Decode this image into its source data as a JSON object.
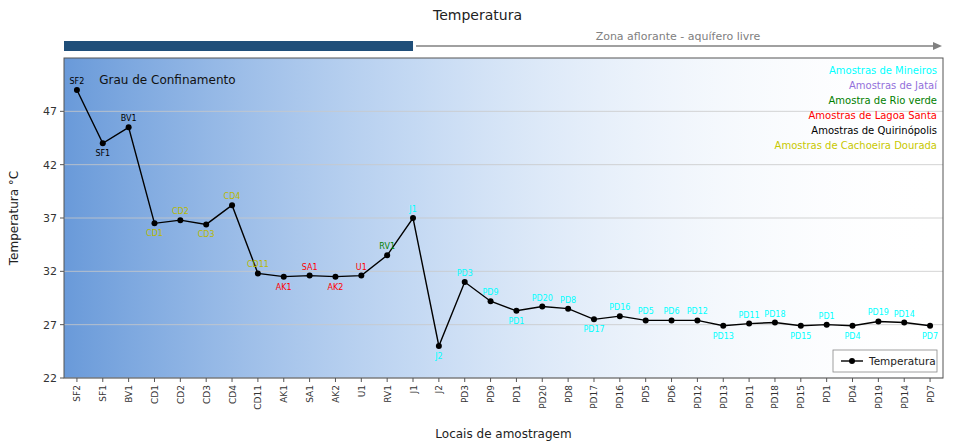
{
  "chart_data": {
    "type": "line",
    "title": "Temperatura",
    "x_label": "Locais de amostragem",
    "y_label": "Temperatura °C",
    "categories": [
      "SF2",
      "SF1",
      "BV1",
      "CD1",
      "CD2",
      "CD3",
      "CD4",
      "CD11",
      "AK1",
      "SA1",
      "AK2",
      "U1",
      "RV1",
      "J1",
      "J2",
      "PD3",
      "PD9",
      "PD1",
      "PD20",
      "PD8",
      "PD17",
      "PD16",
      "PD5",
      "PD6",
      "PD12",
      "PD13",
      "PD11",
      "PD18",
      "PD15",
      "PD1",
      "PD4",
      "PD19",
      "PD14",
      "PD7"
    ],
    "series": [
      {
        "name": "Temperatura",
        "color": "black",
        "marker": "circle",
        "line_style": "solid",
        "values": [
          49.0,
          44.0,
          45.5,
          36.5,
          36.8,
          36.4,
          38.2,
          31.8,
          31.5,
          31.6,
          31.5,
          31.6,
          33.5,
          37.0,
          25.0,
          31.0,
          29.2,
          28.3,
          28.7,
          28.5,
          27.5,
          27.8,
          27.4,
          27.4,
          27.4,
          26.9,
          27.1,
          27.2,
          26.9,
          27.0,
          26.9,
          27.3,
          27.2,
          26.9
        ]
      }
    ],
    "point_labels": [
      {
        "text": "SF2",
        "color": "black"
      },
      {
        "text": "SF1",
        "color": "black"
      },
      {
        "text": "BV1",
        "color": "black"
      },
      {
        "text": "CD1",
        "color": "#b8b800"
      },
      {
        "text": "CD2",
        "color": "#b8b800"
      },
      {
        "text": "CD3",
        "color": "#b8b800"
      },
      {
        "text": "CD4",
        "color": "#b8b800"
      },
      {
        "text": "CD11",
        "color": "#b8b800"
      },
      {
        "text": "AK1",
        "color": "red"
      },
      {
        "text": "SA1",
        "color": "red"
      },
      {
        "text": "AK2",
        "color": "red"
      },
      {
        "text": "U1",
        "color": "red"
      },
      {
        "text": "RV1",
        "color": "green"
      },
      {
        "text": "J1",
        "color": "cyan"
      },
      {
        "text": "J2",
        "color": "cyan"
      },
      {
        "text": "PD3",
        "color": "cyan"
      },
      {
        "text": "PD9",
        "color": "cyan"
      },
      {
        "text": "PD1",
        "color": "cyan"
      },
      {
        "text": "PD20",
        "color": "cyan"
      },
      {
        "text": "PD8",
        "color": "cyan"
      },
      {
        "text": "PD17",
        "color": "cyan"
      },
      {
        "text": "PD16",
        "color": "cyan"
      },
      {
        "text": "PD5",
        "color": "cyan"
      },
      {
        "text": "PD6",
        "color": "cyan"
      },
      {
        "text": "PD12",
        "color": "cyan"
      },
      {
        "text": "PD13",
        "color": "cyan"
      },
      {
        "text": "PD11",
        "color": "cyan"
      },
      {
        "text": "PD18",
        "color": "cyan"
      },
      {
        "text": "PD15",
        "color": "cyan"
      },
      {
        "text": "PD1",
        "color": "cyan"
      },
      {
        "text": "PD4",
        "color": "cyan"
      },
      {
        "text": "PD19",
        "color": "cyan"
      },
      {
        "text": "PD14",
        "color": "cyan"
      },
      {
        "text": "PD7",
        "color": "cyan"
      }
    ],
    "group_labels": [
      {
        "text": "Amostras de Mineiros",
        "color": "cyan"
      },
      {
        "text": "Amostras de Jataí",
        "color": "mediumpurple"
      },
      {
        "text": "Amostra de Rio verde",
        "color": "green"
      },
      {
        "text": "Amostras de Lagoa Santa",
        "color": "red"
      },
      {
        "text": "Amostras de Quirinópolis",
        "color": "black"
      },
      {
        "text": "Amostras de Cachoeira Dourada",
        "color": "#c8c800"
      }
    ],
    "zones": [
      {
        "text": "Grau de Confinamento",
        "from": "SF2",
        "to": "J1",
        "color": "#1f4e79"
      },
      {
        "text": "Zona aflorante - aquífero livre",
        "from": "J2",
        "to": "PD7",
        "color": "gray"
      }
    ],
    "ylim": [
      22,
      52
    ],
    "yticks": [
      22,
      27,
      32,
      37,
      42,
      47
    ],
    "grid": true,
    "legend": "lower right"
  }
}
